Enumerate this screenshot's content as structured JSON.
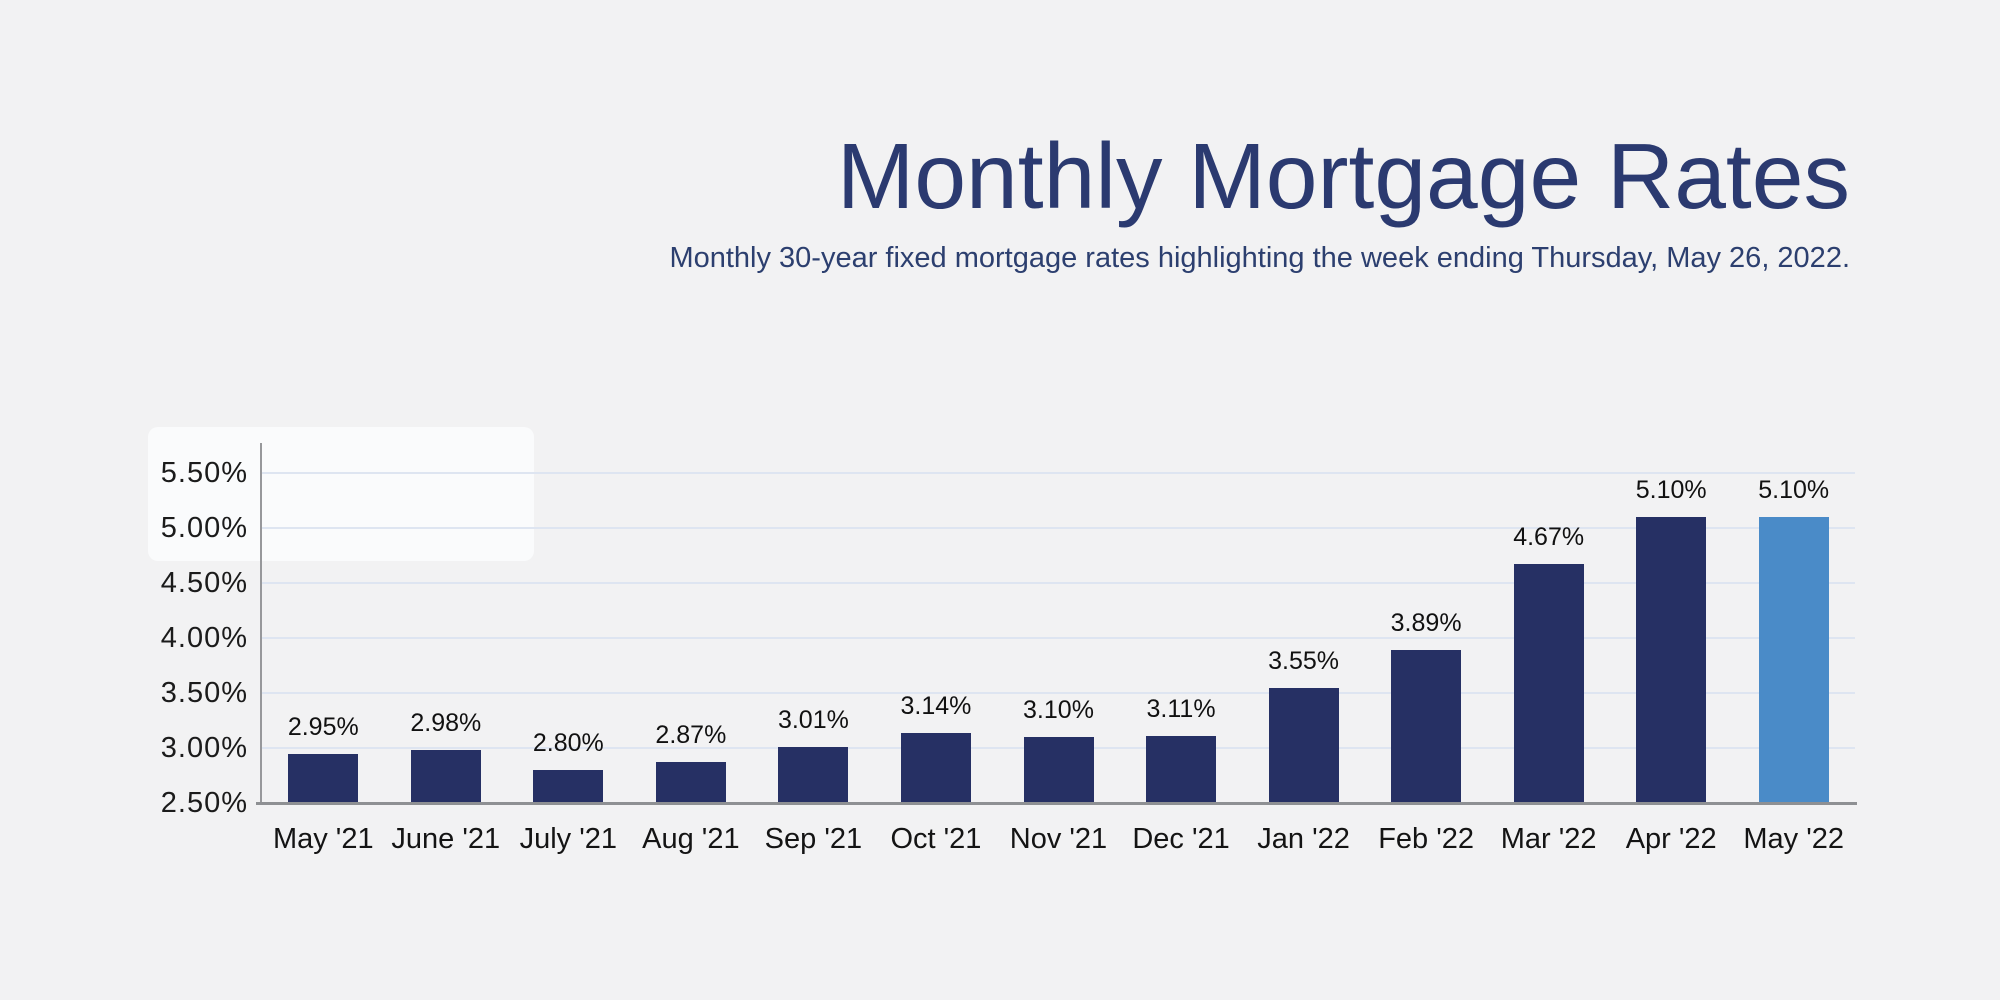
{
  "page": {
    "background_color": "#f2f2f3"
  },
  "header": {
    "title": "Monthly Mortgage Rates",
    "subtitle": "Monthly 30-year fixed mortgage rates highlighting the week ending Thursday, May 26, 2022."
  },
  "colors": {
    "title_text": "#2b3a70",
    "subtitle_text": "#2c3f6f",
    "bar": "#263064",
    "bar_highlight": "#4a8bc8",
    "gridline": "#dee5f1",
    "axis_line": "#8e9093",
    "tick_text": "#1b1b1b",
    "data_label_text": "#111111"
  },
  "chart_data": {
    "type": "bar",
    "title": "Monthly Mortgage Rates",
    "subtitle": "Monthly 30-year fixed mortgage rates highlighting the week ending Thursday, May 26, 2022.",
    "categories": [
      "May '21",
      "June '21",
      "July '21",
      "Aug '21",
      "Sep '21",
      "Oct '21",
      "Nov '21",
      "Dec '21",
      "Jan '22",
      "Feb '22",
      "Mar '22",
      "Apr '22",
      "May '22"
    ],
    "values": [
      2.95,
      2.98,
      2.8,
      2.87,
      3.01,
      3.14,
      3.1,
      3.11,
      3.55,
      3.89,
      4.67,
      5.1,
      5.1
    ],
    "data_labels": [
      "2.95%",
      "2.98%",
      "2.80%",
      "2.87%",
      "3.01%",
      "3.14%",
      "3.10%",
      "3.11%",
      "3.55%",
      "3.89%",
      "4.67%",
      "5.10%",
      "5.10%"
    ],
    "y_ticks": [
      2.5,
      3.0,
      3.5,
      4.0,
      4.5,
      5.0,
      5.5
    ],
    "y_tick_labels": [
      "2.50%",
      "3.00%",
      "3.50%",
      "4.00%",
      "4.50%",
      "5.00%",
      "5.50%"
    ],
    "ylim": [
      2.5,
      5.75
    ],
    "xlabel": "",
    "ylabel": "",
    "grid": true,
    "legend": false,
    "highlighted_category": "May '22"
  }
}
